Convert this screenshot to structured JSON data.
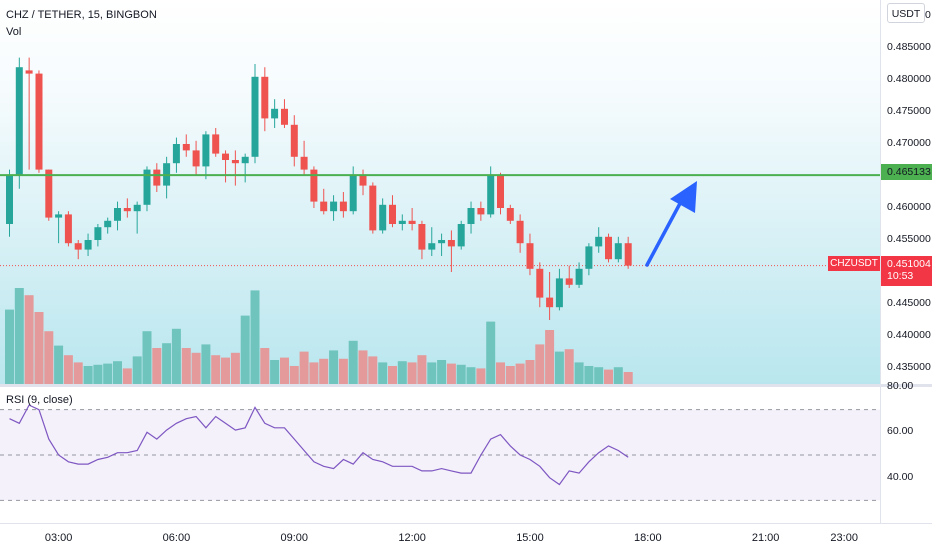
{
  "header": {
    "symbol_line": "CHZ / TETHER, 15, BINGBON",
    "volume_label": "Vol"
  },
  "rsi_header": {
    "label": "RSI (9, close)"
  },
  "price_axis": {
    "currency_badge": "USDT",
    "top_label": "0.490000",
    "labels": [
      "0.485000",
      "0.480000",
      "0.475000",
      "0.470000",
      "0.460000",
      "0.455000",
      "0.445000",
      "0.440000",
      "0.435000"
    ],
    "support_price": "0.465133",
    "last_price": "0.451004",
    "countdown": "10:53",
    "symbol_tag": "CHZUSDT"
  },
  "rsi_axis": {
    "labels": [
      "80.00",
      "60.00",
      "40.00"
    ]
  },
  "time_axis": {
    "labels": [
      "03:00",
      "06:00",
      "09:00",
      "12:00",
      "15:00",
      "18:00",
      "21:00",
      "23:00"
    ]
  },
  "colors": {
    "up": "#26a69a",
    "down": "#ef5350",
    "vol_up": "#6fc5be",
    "vol_down": "#e49a9a",
    "support_line": "#4caf50",
    "rsi_line": "#7e57c2",
    "arrow": "#2962ff"
  },
  "chart_data": {
    "type": "candlestick",
    "timeframe": "15",
    "price_axis_range": [
      0.4325,
      0.4925
    ],
    "x_labels": [
      "03:00",
      "06:00",
      "09:00",
      "12:00",
      "15:00",
      "18:00",
      "21:00",
      "23:00"
    ],
    "candles": [
      [
        0.4575,
        0.466,
        0.4555,
        0.465
      ],
      [
        0.465,
        0.4835,
        0.463,
        0.482
      ],
      [
        0.4815,
        0.4835,
        0.466,
        0.481
      ],
      [
        0.481,
        0.4815,
        0.4655,
        0.466
      ],
      [
        0.466,
        0.466,
        0.458,
        0.4585
      ],
      [
        0.4585,
        0.4595,
        0.4545,
        0.459
      ],
      [
        0.459,
        0.4595,
        0.454,
        0.4545
      ],
      [
        0.4545,
        0.455,
        0.452,
        0.4535
      ],
      [
        0.4535,
        0.456,
        0.4525,
        0.455
      ],
      [
        0.455,
        0.4575,
        0.454,
        0.457
      ],
      [
        0.457,
        0.4585,
        0.456,
        0.458
      ],
      [
        0.458,
        0.461,
        0.4565,
        0.46
      ],
      [
        0.46,
        0.4615,
        0.4585,
        0.4595
      ],
      [
        0.4595,
        0.461,
        0.456,
        0.4605
      ],
      [
        0.4605,
        0.4665,
        0.4595,
        0.466
      ],
      [
        0.466,
        0.467,
        0.4625,
        0.4635
      ],
      [
        0.4635,
        0.468,
        0.4615,
        0.467
      ],
      [
        0.467,
        0.471,
        0.4655,
        0.47
      ],
      [
        0.47,
        0.4715,
        0.468,
        0.469
      ],
      [
        0.469,
        0.4705,
        0.465,
        0.4665
      ],
      [
        0.4665,
        0.472,
        0.4645,
        0.4715
      ],
      [
        0.4715,
        0.4725,
        0.468,
        0.4685
      ],
      [
        0.4685,
        0.469,
        0.464,
        0.4675
      ],
      [
        0.4675,
        0.469,
        0.4635,
        0.467
      ],
      [
        0.467,
        0.4685,
        0.464,
        0.468
      ],
      [
        0.468,
        0.4825,
        0.467,
        0.4805
      ],
      [
        0.4805,
        0.482,
        0.472,
        0.474
      ],
      [
        0.474,
        0.477,
        0.4725,
        0.4755
      ],
      [
        0.4755,
        0.477,
        0.4725,
        0.473
      ],
      [
        0.473,
        0.4745,
        0.4665,
        0.468
      ],
      [
        0.468,
        0.4705,
        0.465,
        0.466
      ],
      [
        0.466,
        0.4665,
        0.46,
        0.461
      ],
      [
        0.461,
        0.463,
        0.459,
        0.4595
      ],
      [
        0.4595,
        0.462,
        0.458,
        0.461
      ],
      [
        0.461,
        0.4625,
        0.4585,
        0.4595
      ],
      [
        0.4595,
        0.4665,
        0.459,
        0.465
      ],
      [
        0.465,
        0.466,
        0.462,
        0.4635
      ],
      [
        0.4635,
        0.464,
        0.456,
        0.4565
      ],
      [
        0.4565,
        0.4615,
        0.456,
        0.4605
      ],
      [
        0.4605,
        0.462,
        0.457,
        0.4575
      ],
      [
        0.4575,
        0.459,
        0.4565,
        0.458
      ],
      [
        0.458,
        0.46,
        0.4565,
        0.4575
      ],
      [
        0.4575,
        0.458,
        0.452,
        0.4535
      ],
      [
        0.4535,
        0.457,
        0.4525,
        0.4545
      ],
      [
        0.4545,
        0.456,
        0.4525,
        0.455
      ],
      [
        0.455,
        0.4565,
        0.45,
        0.454
      ],
      [
        0.454,
        0.458,
        0.4535,
        0.4575
      ],
      [
        0.4575,
        0.461,
        0.456,
        0.46
      ],
      [
        0.46,
        0.461,
        0.458,
        0.459
      ],
      [
        0.459,
        0.4665,
        0.4585,
        0.465
      ],
      [
        0.465,
        0.4655,
        0.459,
        0.46
      ],
      [
        0.46,
        0.4605,
        0.4575,
        0.458
      ],
      [
        0.458,
        0.459,
        0.453,
        0.4545
      ],
      [
        0.4545,
        0.456,
        0.4495,
        0.4505
      ],
      [
        0.4505,
        0.4515,
        0.4445,
        0.446
      ],
      [
        0.446,
        0.45,
        0.4425,
        0.4445
      ],
      [
        0.4445,
        0.4505,
        0.444,
        0.449
      ],
      [
        0.449,
        0.451,
        0.4475,
        0.448
      ],
      [
        0.448,
        0.4515,
        0.4475,
        0.4505
      ],
      [
        0.4505,
        0.4545,
        0.4495,
        0.454
      ],
      [
        0.454,
        0.457,
        0.453,
        0.4555
      ],
      [
        0.4555,
        0.456,
        0.4515,
        0.452
      ],
      [
        0.452,
        0.4555,
        0.4515,
        0.4545
      ],
      [
        0.4545,
        0.4555,
        0.4505,
        0.451
      ]
    ],
    "volumes": [
      0.62,
      0.8,
      0.74,
      0.6,
      0.44,
      0.32,
      0.24,
      0.18,
      0.15,
      0.16,
      0.17,
      0.19,
      0.13,
      0.23,
      0.44,
      0.3,
      0.34,
      0.46,
      0.3,
      0.26,
      0.33,
      0.24,
      0.22,
      0.26,
      0.57,
      0.78,
      0.3,
      0.2,
      0.22,
      0.15,
      0.27,
      0.18,
      0.21,
      0.28,
      0.21,
      0.36,
      0.28,
      0.23,
      0.18,
      0.15,
      0.19,
      0.18,
      0.24,
      0.18,
      0.2,
      0.17,
      0.16,
      0.14,
      0.13,
      0.52,
      0.18,
      0.15,
      0.17,
      0.2,
      0.33,
      0.45,
      0.27,
      0.29,
      0.18,
      0.15,
      0.14,
      0.12,
      0.14,
      0.1
    ],
    "rsi": {
      "label": "RSI (9, close)",
      "period": 9,
      "range": [
        20,
        80
      ],
      "bands": [
        30,
        50,
        70
      ],
      "values": [
        66,
        64,
        72,
        70,
        57,
        50,
        47,
        46,
        46,
        48,
        49,
        51,
        51,
        52,
        60,
        57,
        61,
        64,
        66,
        67,
        62,
        67,
        64,
        61,
        62,
        71,
        64,
        62,
        62,
        57,
        52,
        47,
        45,
        44,
        48,
        46,
        51,
        48,
        47,
        45,
        45,
        45,
        43,
        43,
        44,
        43,
        42,
        42,
        50,
        57,
        59,
        54,
        50,
        48,
        45,
        40,
        37,
        43,
        42,
        47,
        51,
        54,
        52,
        49
      ]
    },
    "support_level": 0.465133,
    "last_price": 0.451004,
    "annotation": "blue upward arrow"
  }
}
